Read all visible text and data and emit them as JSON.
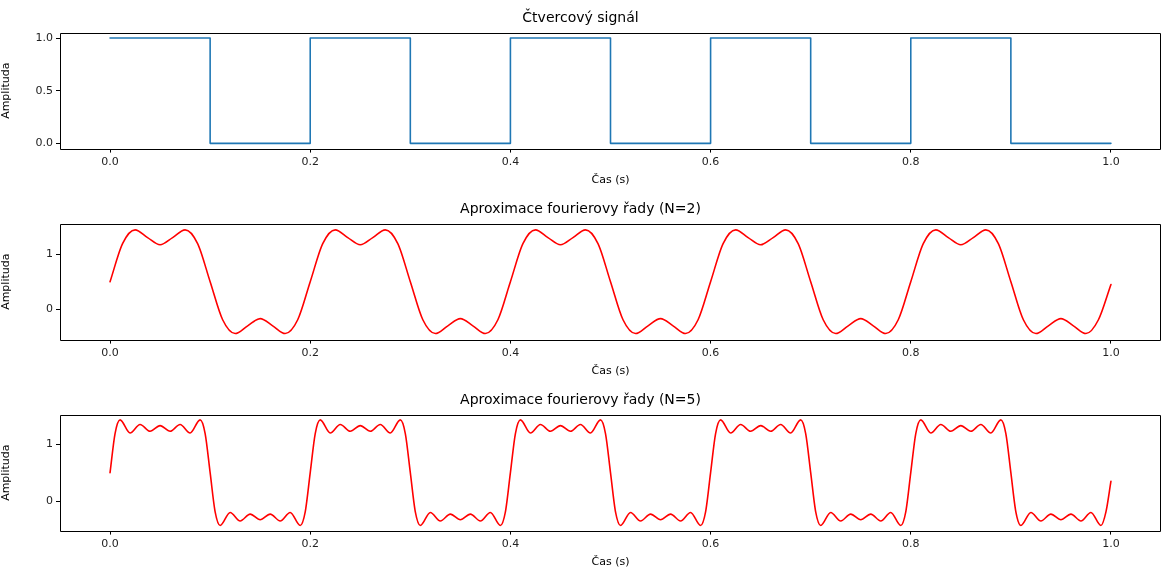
{
  "chart_data": [
    {
      "type": "step",
      "title": "Čtvercový signál",
      "xlabel": "Čas (s)",
      "ylabel": "Amplituda",
      "grid": false,
      "legend": false,
      "marker": "none",
      "line_style": "solid",
      "xlim": [
        -0.05,
        1.05
      ],
      "xticks": [
        {
          "value": 0,
          "label": "0.0"
        },
        {
          "value": 0.2,
          "label": "0.2"
        },
        {
          "value": 0.4,
          "label": "0.4"
        },
        {
          "value": 0.6,
          "label": "0.6"
        },
        {
          "value": 0.8,
          "label": "0.8"
        },
        {
          "value": 1,
          "label": "1.0"
        }
      ],
      "ylim": [
        -0.05,
        1.05
      ],
      "yticks": [
        {
          "value": 0,
          "label": "0.0"
        },
        {
          "value": 0.5,
          "label": "0.5"
        },
        {
          "value": 1,
          "label": "1.0"
        }
      ],
      "series": [
        {
          "color": "#1f77b4",
          "x": [
            0,
            0.1,
            0.2,
            0.3,
            0.4,
            0.5,
            0.6,
            0.7,
            0.8,
            0.9,
            1
          ],
          "values": [
            1,
            0,
            1,
            0,
            1,
            0,
            1,
            0,
            1,
            0,
            0
          ]
        }
      ]
    },
    {
      "type": "line",
      "title": "Aproximace fourierovy řady (N=2)",
      "xlabel": "Čas (s)",
      "ylabel": "Amplituda",
      "grid": false,
      "legend": false,
      "marker": "none",
      "line_style": "solid",
      "xlim": [
        -0.05,
        1.05
      ],
      "xticks": [
        {
          "value": 0,
          "label": "0.0"
        },
        {
          "value": 0.2,
          "label": "0.2"
        },
        {
          "value": 0.4,
          "label": "0.4"
        },
        {
          "value": 0.6,
          "label": "0.6"
        },
        {
          "value": 0.8,
          "label": "0.8"
        },
        {
          "value": 1,
          "label": "1.0"
        }
      ],
      "ylim": [
        -0.55,
        1.55
      ],
      "yticks": [
        {
          "value": 0,
          "label": "0"
        },
        {
          "value": 1,
          "label": "1"
        }
      ],
      "series": [
        {
          "color": "#ff0000",
          "x": [
            0,
            0.0125,
            0.025,
            0.0375,
            0.05,
            0.0625,
            0.075,
            0.0875,
            0.1,
            0.1125,
            0.125,
            0.1375,
            0.15,
            0.1625,
            0.175,
            0.1875,
            0.2,
            0.2125,
            0.225,
            0.2375,
            0.25,
            0.2625,
            0.275,
            0.2875,
            0.3,
            0.3125,
            0.325,
            0.3375,
            0.35,
            0.3625,
            0.375,
            0.3875,
            0.4,
            0.4125,
            0.425,
            0.4375,
            0.45,
            0.4625,
            0.475,
            0.4875,
            0.5,
            0.5125,
            0.525,
            0.5375,
            0.55,
            0.5625,
            0.575,
            0.5875,
            0.6,
            0.6125,
            0.625,
            0.6375,
            0.65,
            0.6625,
            0.675,
            0.6875,
            0.7,
            0.7125,
            0.725,
            0.7375,
            0.75,
            0.7625,
            0.775,
            0.7875,
            0.8,
            0.8125,
            0.825,
            0.8375,
            0.85,
            0.8625,
            0.875,
            0.8875,
            0.9,
            0.9125,
            0.925,
            0.9375,
            0.95,
            0.9625,
            0.975,
            0.9875,
            1
          ],
          "values": [
            0.5,
            1.19,
            1.44,
            1.3,
            1.17,
            1.3,
            1.44,
            1.19,
            0.5,
            -0.19,
            -0.44,
            -0.3,
            -0.17,
            -0.3,
            -0.44,
            -0.19,
            0.5,
            1.19,
            1.44,
            1.3,
            1.17,
            1.3,
            1.44,
            1.19,
            0.5,
            -0.19,
            -0.44,
            -0.3,
            -0.17,
            -0.3,
            -0.44,
            -0.19,
            0.5,
            1.19,
            1.44,
            1.3,
            1.17,
            1.3,
            1.44,
            1.19,
            0.5,
            -0.19,
            -0.44,
            -0.3,
            -0.17,
            -0.3,
            -0.44,
            -0.19,
            0.5,
            1.19,
            1.44,
            1.3,
            1.17,
            1.3,
            1.44,
            1.19,
            0.5,
            -0.19,
            -0.44,
            -0.3,
            -0.17,
            -0.3,
            -0.44,
            -0.19,
            0.5,
            1.19,
            1.44,
            1.3,
            1.17,
            1.3,
            1.44,
            1.19,
            0.5,
            -0.19,
            -0.44,
            -0.3,
            -0.17,
            -0.3,
            -0.44,
            -0.19,
            0.45
          ]
        }
      ]
    },
    {
      "type": "line",
      "title": "Aproximace fourierovy řady (N=5)",
      "xlabel": "Čas (s)",
      "ylabel": "Amplituda",
      "grid": false,
      "legend": false,
      "marker": "none",
      "line_style": "solid",
      "xlim": [
        -0.05,
        1.05
      ],
      "xticks": [
        {
          "value": 0,
          "label": "0.0"
        },
        {
          "value": 0.2,
          "label": "0.2"
        },
        {
          "value": 0.4,
          "label": "0.4"
        },
        {
          "value": 0.6,
          "label": "0.6"
        },
        {
          "value": 0.8,
          "label": "0.8"
        },
        {
          "value": 1,
          "label": "1.0"
        }
      ],
      "ylim": [
        -0.52,
        1.52
      ],
      "yticks": [
        {
          "value": 0,
          "label": "0"
        },
        {
          "value": 1,
          "label": "1"
        }
      ],
      "series": [
        {
          "color": "#ff0000",
          "x": [
            0,
            0.005,
            0.01,
            0.02,
            0.03,
            0.04,
            0.05,
            0.06,
            0.07,
            0.08,
            0.09,
            0.095,
            0.1,
            0.105,
            0.11,
            0.12,
            0.13,
            0.14,
            0.15,
            0.16,
            0.17,
            0.18,
            0.19,
            0.195,
            0.2,
            0.205,
            0.21,
            0.22,
            0.23,
            0.24,
            0.25,
            0.26,
            0.27,
            0.28,
            0.29,
            0.295,
            0.3,
            0.305,
            0.31,
            0.32,
            0.33,
            0.34,
            0.35,
            0.36,
            0.37,
            0.38,
            0.39,
            0.395,
            0.4,
            0.405,
            0.41,
            0.42,
            0.43,
            0.44,
            0.45,
            0.46,
            0.47,
            0.48,
            0.49,
            0.495,
            0.5,
            0.505,
            0.51,
            0.52,
            0.53,
            0.54,
            0.55,
            0.56,
            0.57,
            0.58,
            0.59,
            0.595,
            0.6,
            0.605,
            0.61,
            0.62,
            0.63,
            0.64,
            0.65,
            0.66,
            0.67,
            0.68,
            0.69,
            0.695,
            0.7,
            0.705,
            0.71,
            0.72,
            0.73,
            0.74,
            0.75,
            0.76,
            0.77,
            0.78,
            0.79,
            0.795,
            0.8,
            0.805,
            0.81,
            0.82,
            0.83,
            0.84,
            0.85,
            0.86,
            0.87,
            0.88,
            0.89,
            0.895,
            0.9,
            0.905,
            0.91,
            0.92,
            0.93,
            0.94,
            0.95,
            0.96,
            0.97,
            0.98,
            0.99,
            0.995,
            1
          ],
          "values": [
            0.5,
            1.19,
            1.43,
            1.2,
            1.35,
            1.23,
            1.33,
            1.23,
            1.35,
            1.2,
            1.43,
            1.19,
            0.5,
            -0.19,
            -0.43,
            -0.2,
            -0.35,
            -0.23,
            -0.33,
            -0.23,
            -0.35,
            -0.2,
            -0.43,
            -0.19,
            0.5,
            1.19,
            1.43,
            1.2,
            1.35,
            1.23,
            1.33,
            1.23,
            1.35,
            1.2,
            1.43,
            1.19,
            0.5,
            -0.19,
            -0.43,
            -0.2,
            -0.35,
            -0.23,
            -0.33,
            -0.23,
            -0.35,
            -0.2,
            -0.43,
            -0.19,
            0.5,
            1.19,
            1.43,
            1.2,
            1.35,
            1.23,
            1.33,
            1.23,
            1.35,
            1.2,
            1.43,
            1.19,
            0.5,
            -0.19,
            -0.43,
            -0.2,
            -0.35,
            -0.23,
            -0.33,
            -0.23,
            -0.35,
            -0.2,
            -0.43,
            -0.19,
            0.5,
            1.19,
            1.43,
            1.2,
            1.35,
            1.23,
            1.33,
            1.23,
            1.35,
            1.2,
            1.43,
            1.19,
            0.5,
            -0.19,
            -0.43,
            -0.2,
            -0.35,
            -0.23,
            -0.33,
            -0.23,
            -0.35,
            -0.2,
            -0.43,
            -0.19,
            0.5,
            1.19,
            1.43,
            1.2,
            1.35,
            1.23,
            1.33,
            1.23,
            1.35,
            1.2,
            1.43,
            1.19,
            0.5,
            -0.19,
            -0.43,
            -0.2,
            -0.35,
            -0.23,
            -0.33,
            -0.23,
            -0.35,
            -0.2,
            -0.43,
            -0.19,
            0.35
          ]
        }
      ]
    }
  ]
}
